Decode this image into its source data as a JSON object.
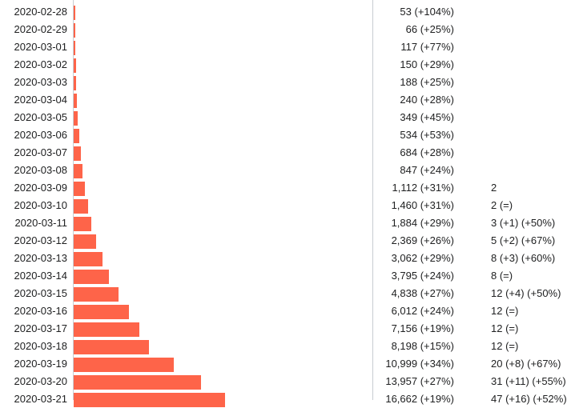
{
  "chart_data": {
    "type": "bar",
    "orientation": "horizontal",
    "bar_color": "#fe6449",
    "max_value": 33000,
    "rows": [
      {
        "date": "2020-02-28",
        "value": 53,
        "cases_label": "53 (+104%)",
        "deaths_label": ""
      },
      {
        "date": "2020-02-29",
        "value": 66,
        "cases_label": "66 (+25%)",
        "deaths_label": ""
      },
      {
        "date": "2020-03-01",
        "value": 117,
        "cases_label": "117 (+77%)",
        "deaths_label": ""
      },
      {
        "date": "2020-03-02",
        "value": 150,
        "cases_label": "150 (+29%)",
        "deaths_label": ""
      },
      {
        "date": "2020-03-03",
        "value": 188,
        "cases_label": "188 (+25%)",
        "deaths_label": ""
      },
      {
        "date": "2020-03-04",
        "value": 240,
        "cases_label": "240 (+28%)",
        "deaths_label": ""
      },
      {
        "date": "2020-03-05",
        "value": 349,
        "cases_label": "349 (+45%)",
        "deaths_label": ""
      },
      {
        "date": "2020-03-06",
        "value": 534,
        "cases_label": "534 (+53%)",
        "deaths_label": ""
      },
      {
        "date": "2020-03-07",
        "value": 684,
        "cases_label": "684 (+28%)",
        "deaths_label": ""
      },
      {
        "date": "2020-03-08",
        "value": 847,
        "cases_label": "847 (+24%)",
        "deaths_label": ""
      },
      {
        "date": "2020-03-09",
        "value": 1112,
        "cases_label": "1,112 (+31%)",
        "deaths_label": "2"
      },
      {
        "date": "2020-03-10",
        "value": 1460,
        "cases_label": "1,460 (+31%)",
        "deaths_label": "2 (=)"
      },
      {
        "date": "2020-03-11",
        "value": 1884,
        "cases_label": "1,884 (+29%)",
        "deaths_label": "3 (+1) (+50%)"
      },
      {
        "date": "2020-03-12",
        "value": 2369,
        "cases_label": "2,369 (+26%)",
        "deaths_label": "5 (+2) (+67%)"
      },
      {
        "date": "2020-03-13",
        "value": 3062,
        "cases_label": "3,062 (+29%)",
        "deaths_label": "8 (+3) (+60%)"
      },
      {
        "date": "2020-03-14",
        "value": 3795,
        "cases_label": "3,795 (+24%)",
        "deaths_label": "8 (=)"
      },
      {
        "date": "2020-03-15",
        "value": 4838,
        "cases_label": "4,838 (+27%)",
        "deaths_label": "12 (+4) (+50%)"
      },
      {
        "date": "2020-03-16",
        "value": 6012,
        "cases_label": "6,012 (+24%)",
        "deaths_label": "12 (=)"
      },
      {
        "date": "2020-03-17",
        "value": 7156,
        "cases_label": "7,156 (+19%)",
        "deaths_label": "12 (=)"
      },
      {
        "date": "2020-03-18",
        "value": 8198,
        "cases_label": "8,198 (+15%)",
        "deaths_label": "12 (=)"
      },
      {
        "date": "2020-03-19",
        "value": 10999,
        "cases_label": "10,999 (+34%)",
        "deaths_label": "20 (+8) (+67%)"
      },
      {
        "date": "2020-03-20",
        "value": 13957,
        "cases_label": "13,957 (+27%)",
        "deaths_label": "31 (+11) (+55%)"
      },
      {
        "date": "2020-03-21",
        "value": 16662,
        "cases_label": "16,662 (+19%)",
        "deaths_label": "47 (+16) (+52%)"
      }
    ]
  }
}
